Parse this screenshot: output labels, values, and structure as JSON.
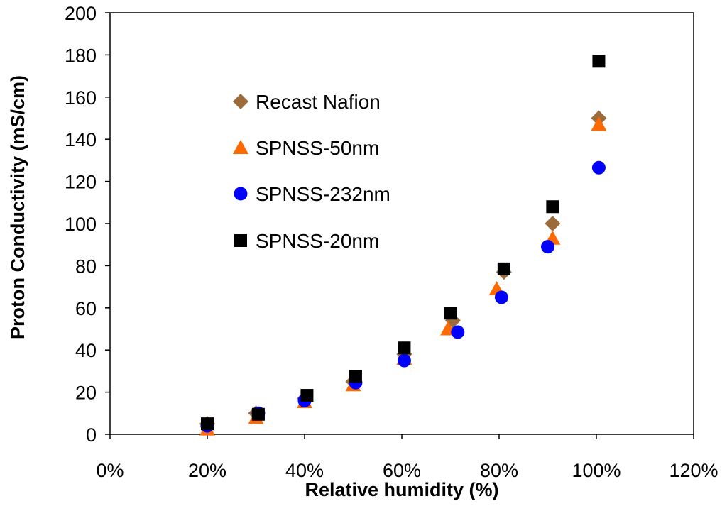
{
  "chart_data": {
    "type": "scatter",
    "title": "",
    "xlabel": "Relative humidity (%)",
    "ylabel": "Proton Conductivity (mS/cm)",
    "xlim": [
      0,
      120
    ],
    "ylim": [
      0,
      200
    ],
    "x_ticks": [
      0,
      20,
      40,
      60,
      80,
      100,
      120
    ],
    "x_tick_labels": [
      "0%",
      "20%",
      "40%",
      "60%",
      "80%",
      "100%",
      "120%"
    ],
    "y_ticks": [
      0,
      20,
      40,
      60,
      80,
      100,
      120,
      140,
      160,
      180,
      200
    ],
    "y_tick_labels": [
      "0",
      "20",
      "40",
      "60",
      "80",
      "100",
      "120",
      "140",
      "160",
      "180",
      "200"
    ],
    "grid": false,
    "legend_position": "top-left inside plot",
    "series": [
      {
        "name": "Recast Nafion",
        "marker": "diamond",
        "color": "#9C6B3C",
        "points": [
          [
            20,
            5
          ],
          [
            30,
            10
          ],
          [
            40,
            17
          ],
          [
            50,
            25
          ],
          [
            60.5,
            38
          ],
          [
            70.5,
            54
          ],
          [
            81,
            77
          ],
          [
            91,
            100
          ],
          [
            100.5,
            150
          ]
        ]
      },
      {
        "name": "SPNSS-50nm",
        "marker": "triangle",
        "color": "#FF6A00",
        "points": [
          [
            20,
            2.5
          ],
          [
            30,
            8
          ],
          [
            40,
            15.5
          ],
          [
            50,
            23.5
          ],
          [
            60.5,
            36
          ],
          [
            69.5,
            50
          ],
          [
            79.5,
            69
          ],
          [
            91,
            93
          ],
          [
            100.5,
            147
          ]
        ]
      },
      {
        "name": "SPNSS-232nm",
        "marker": "circle",
        "color": "#0000FF",
        "points": [
          [
            20,
            4
          ],
          [
            30.5,
            10
          ],
          [
            40,
            16
          ],
          [
            50.5,
            24.5
          ],
          [
            60.5,
            35
          ],
          [
            71.5,
            48.5
          ],
          [
            80.5,
            65
          ],
          [
            90,
            89
          ],
          [
            100.5,
            126.5
          ]
        ]
      },
      {
        "name": "SPNSS-20nm",
        "marker": "square",
        "color": "#000000",
        "points": [
          [
            20,
            5
          ],
          [
            30.5,
            9.5
          ],
          [
            40.5,
            18.5
          ],
          [
            50.5,
            27.5
          ],
          [
            60.5,
            41
          ],
          [
            70,
            57.5
          ],
          [
            81,
            78.5
          ],
          [
            91,
            108
          ],
          [
            100.5,
            177
          ]
        ]
      }
    ]
  }
}
